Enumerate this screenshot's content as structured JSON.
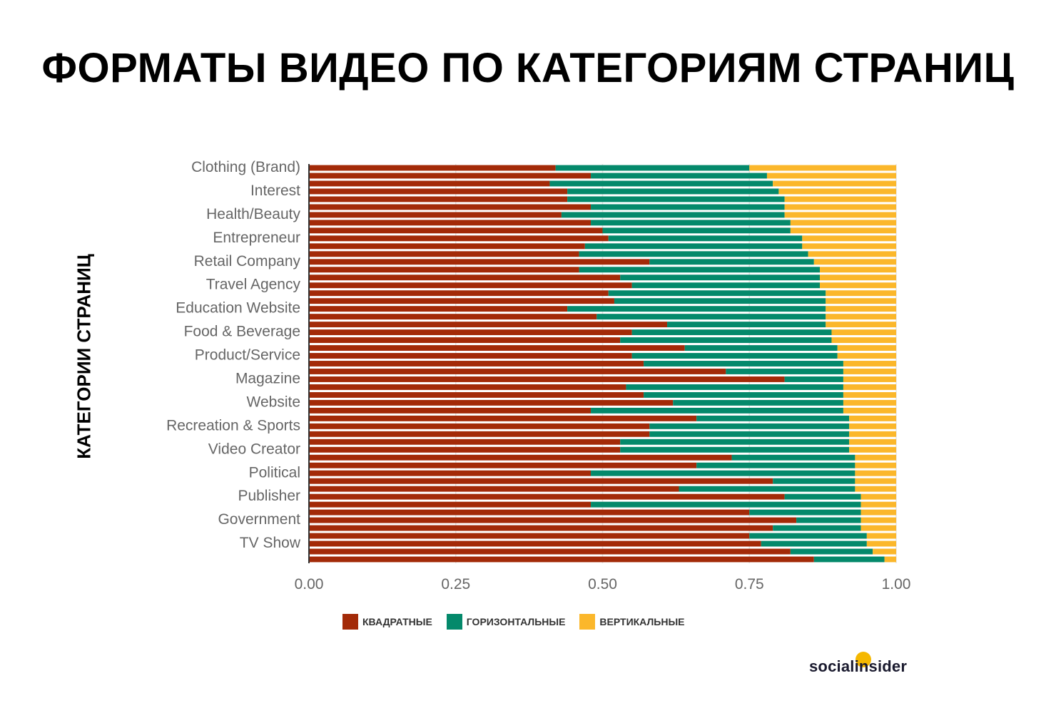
{
  "title": "ФОРМАТЫ ВИДЕО ПО КАТЕГОРИЯМ СТРАНИЦ",
  "logo_text": "socialinsider",
  "colors": {
    "square": "#a32a08",
    "horizontal": "#04896b",
    "vertical": "#fbb72b",
    "axis": "#333333",
    "grid": "#e6e6e6",
    "label": "#666666"
  },
  "chart_data": {
    "type": "bar",
    "orientation": "horizontal",
    "stacked": true,
    "ylabel": "КАТЕГОРИИ СТРАНИЦ",
    "xlabel": "",
    "xlim": [
      0,
      1
    ],
    "x_ticks": [
      "0.00",
      "0.25",
      "0.50",
      "0.75",
      "1.00"
    ],
    "grid": true,
    "legend_position": "bottom",
    "shown_category_labels": [
      "Clothing (Brand)",
      "Interest",
      "Health/Beauty",
      "Entrepreneur",
      "Retail Company",
      "Travel Agency",
      "Education Website",
      "Food & Beverage",
      "Product/Service",
      "Magazine",
      "Website",
      "Recreation & Sports",
      "Video Creator",
      "Political",
      "Publisher",
      "Government",
      "TV Show"
    ],
    "series": [
      {
        "name": "КВАДРАТНЫЕ",
        "values": [
          0.42,
          0.48,
          0.41,
          0.44,
          0.44,
          0.48,
          0.43,
          0.48,
          0.5,
          0.51,
          0.47,
          0.46,
          0.58,
          0.46,
          0.53,
          0.55,
          0.51,
          0.52,
          0.44,
          0.49,
          0.61,
          0.55,
          0.53,
          0.64,
          0.55,
          0.57,
          0.71,
          0.81,
          0.54,
          0.57,
          0.62,
          0.48,
          0.66,
          0.58,
          0.58,
          0.53,
          0.53,
          0.72,
          0.66,
          0.48,
          0.79,
          0.63,
          0.81,
          0.48,
          0.75,
          0.83,
          0.79,
          0.75,
          0.77,
          0.82,
          0.86
        ]
      },
      {
        "name": "ГОРИЗОНТАЛЬНЫЕ",
        "values": [
          0.33,
          0.3,
          0.38,
          0.36,
          0.37,
          0.33,
          0.38,
          0.34,
          0.32,
          0.33,
          0.37,
          0.39,
          0.28,
          0.41,
          0.34,
          0.32,
          0.37,
          0.36,
          0.44,
          0.39,
          0.27,
          0.34,
          0.36,
          0.26,
          0.35,
          0.34,
          0.2,
          0.1,
          0.37,
          0.34,
          0.29,
          0.43,
          0.26,
          0.34,
          0.34,
          0.39,
          0.39,
          0.21,
          0.27,
          0.45,
          0.14,
          0.3,
          0.13,
          0.46,
          0.19,
          0.11,
          0.15,
          0.2,
          0.18,
          0.14,
          0.12
        ]
      },
      {
        "name": "ВЕРТИКАЛЬНЫЕ",
        "values": [
          0.25,
          0.22,
          0.21,
          0.2,
          0.19,
          0.19,
          0.19,
          0.18,
          0.18,
          0.16,
          0.16,
          0.15,
          0.14,
          0.13,
          0.13,
          0.13,
          0.12,
          0.12,
          0.12,
          0.12,
          0.12,
          0.11,
          0.11,
          0.1,
          0.1,
          0.09,
          0.09,
          0.09,
          0.09,
          0.09,
          0.09,
          0.09,
          0.08,
          0.08,
          0.08,
          0.08,
          0.08,
          0.07,
          0.07,
          0.07,
          0.07,
          0.07,
          0.06,
          0.06,
          0.06,
          0.06,
          0.06,
          0.05,
          0.05,
          0.04,
          0.02
        ]
      }
    ]
  }
}
